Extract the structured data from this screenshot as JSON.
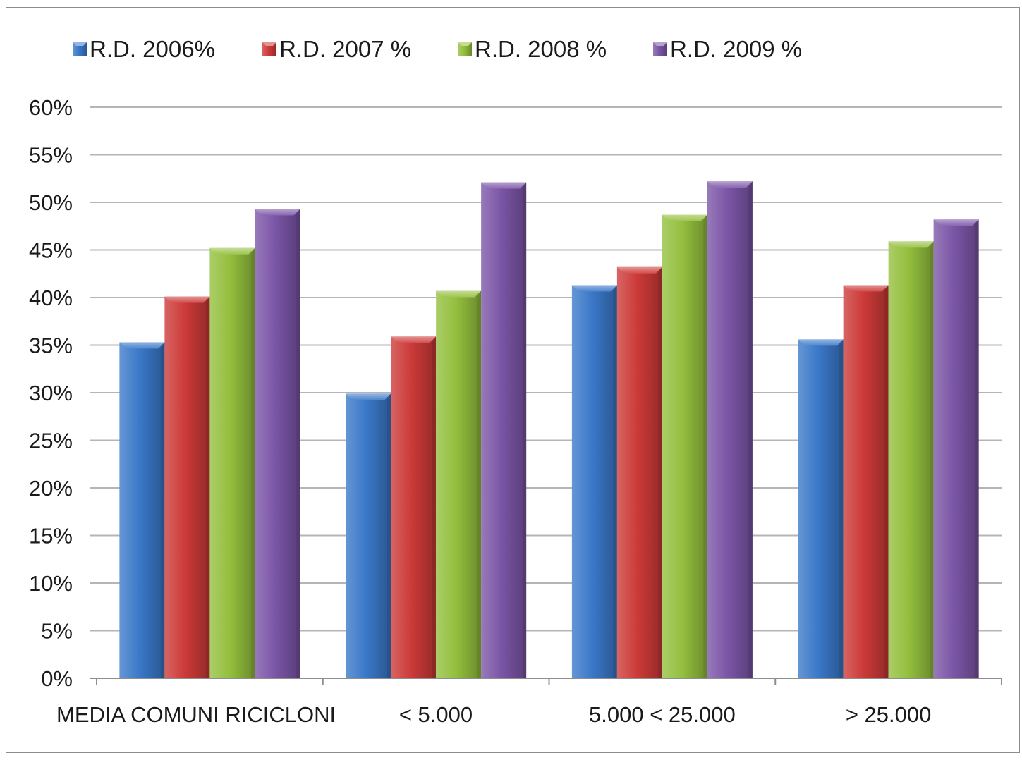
{
  "chart_data": {
    "type": "bar",
    "title": "",
    "xlabel": "",
    "ylabel": "",
    "categories": [
      "MEDIA COMUNI RICICLONI",
      "< 5.000",
      "5.000 < 25.000",
      "> 25.000"
    ],
    "series": [
      {
        "name": "R.D. 2006%",
        "color": "#3a78c8",
        "values": [
          35.3,
          29.9,
          41.3,
          35.6
        ]
      },
      {
        "name": "R.D. 2007 %",
        "color": "#cc3a38",
        "values": [
          40.1,
          35.9,
          43.2,
          41.3
        ]
      },
      {
        "name": "R.D. 2008 %",
        "color": "#93bf3d",
        "values": [
          45.2,
          40.7,
          48.7,
          45.9
        ]
      },
      {
        "name": "R.D. 2009 %",
        "color": "#7b55a6",
        "values": [
          49.3,
          52.1,
          52.2,
          48.2
        ]
      }
    ],
    "ylim": [
      0,
      60
    ],
    "yticks": [
      "0%",
      "5%",
      "10%",
      "15%",
      "20%",
      "25%",
      "30%",
      "35%",
      "40%",
      "45%",
      "50%",
      "55%",
      "60%"
    ],
    "grid": true,
    "legend_position": "top"
  }
}
